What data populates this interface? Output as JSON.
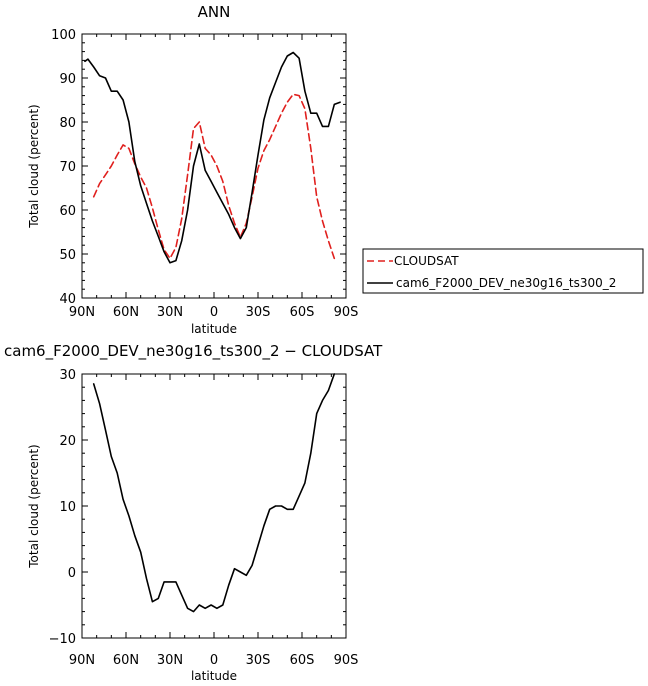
{
  "chart_data": [
    {
      "type": "line",
      "title": "ANN",
      "xlabel": "latitude",
      "ylabel": "Total cloud (percent)",
      "xlim": [
        90,
        -90
      ],
      "ylim": [
        40,
        100
      ],
      "xticks": [
        90,
        60,
        30,
        0,
        -30,
        -60,
        -90
      ],
      "xticklabels": [
        "90N",
        "60N",
        "30N",
        "0",
        "30S",
        "60S",
        "90S"
      ],
      "yticks": [
        40,
        50,
        60,
        70,
        80,
        90,
        100
      ],
      "yticklabels": [
        "40",
        "50",
        "60",
        "70",
        "80",
        "90",
        "100"
      ],
      "grid": false,
      "legend": "outside-right",
      "series": [
        {
          "name": "CLOUDSAT",
          "color": "#e0201e",
          "dash": "dashed",
          "x": [
            82,
            78,
            74,
            70,
            66,
            62,
            58,
            54,
            50,
            46,
            42,
            38,
            34,
            30,
            26,
            22,
            18,
            14,
            10,
            6,
            2,
            -2,
            -6,
            -10,
            -14,
            -18,
            -22,
            -26,
            -30,
            -34,
            -38,
            -42,
            -46,
            -50,
            -54,
            -58,
            -62,
            -66,
            -70,
            -74,
            -78,
            -82
          ],
          "y": [
            63.0,
            66.0,
            68.0,
            70.0,
            72.5,
            74.8,
            74.0,
            70.5,
            67.5,
            65.0,
            60.5,
            55.5,
            51.0,
            49.0,
            51.5,
            58.0,
            68.0,
            78.5,
            80.0,
            74.0,
            72.5,
            70.0,
            66.5,
            61.0,
            57.0,
            53.8,
            57.0,
            63.0,
            69.5,
            73.5,
            76.0,
            79.0,
            82.0,
            84.5,
            86.3,
            86.0,
            83.0,
            74.0,
            63.0,
            57.5,
            53.0,
            49.0
          ]
        },
        {
          "name": "cam6_F2000_DEV_ne30g16_ts300_2",
          "color": "#000000",
          "dash": "solid",
          "x": [
            88,
            86,
            82,
            78,
            74,
            70,
            66,
            62,
            58,
            54,
            50,
            46,
            42,
            38,
            34,
            30,
            26,
            22,
            18,
            14,
            10,
            6,
            2,
            -2,
            -6,
            -10,
            -14,
            -18,
            -22,
            -26,
            -30,
            -34,
            -38,
            -42,
            -46,
            -50,
            -54,
            -58,
            -62,
            -66,
            -70,
            -74,
            -78,
            -82,
            -86
          ],
          "y": [
            93.8,
            94.3,
            92.5,
            90.5,
            90.0,
            87.0,
            87.0,
            85.0,
            80.0,
            71.0,
            65.5,
            61.5,
            57.5,
            54.0,
            50.5,
            48.0,
            48.5,
            53.0,
            60.0,
            70.0,
            75.0,
            69.0,
            66.5,
            64.0,
            61.5,
            59.0,
            56.0,
            53.5,
            56.0,
            64.0,
            72.5,
            80.5,
            85.5,
            89.0,
            92.5,
            95.0,
            95.8,
            94.5,
            87.0,
            82.0,
            82.0,
            79.0,
            79.0,
            84.0,
            84.5
          ]
        }
      ]
    },
    {
      "type": "line",
      "title": "cam6_F2000_DEV_ne30g16_ts300_2 − CLOUDSAT",
      "xlabel": "latitude",
      "ylabel": "Total cloud (percent)",
      "xlim": [
        90,
        -90
      ],
      "ylim": [
        -10,
        30
      ],
      "xticks": [
        90,
        60,
        30,
        0,
        -30,
        -60,
        -90
      ],
      "xticklabels": [
        "90N",
        "60N",
        "30N",
        "0",
        "30S",
        "60S",
        "90S"
      ],
      "yticks": [
        -10,
        0,
        10,
        20,
        30
      ],
      "yticklabels": [
        "−10",
        "0",
        "10",
        "20",
        "30"
      ],
      "grid": false,
      "series": [
        {
          "color": "#000000",
          "dash": "solid",
          "x": [
            82,
            78,
            74,
            70,
            66,
            62,
            58,
            54,
            50,
            46,
            42,
            38,
            34,
            30,
            26,
            22,
            18,
            14,
            10,
            6,
            2,
            -2,
            -6,
            -10,
            -14,
            -18,
            -22,
            -26,
            -30,
            -34,
            -38,
            -42,
            -46,
            -50,
            -54,
            -58,
            -62,
            -66,
            -70,
            -74,
            -78,
            -82
          ],
          "y": [
            28.5,
            25.5,
            21.5,
            17.5,
            15.0,
            11.0,
            8.5,
            5.5,
            3.0,
            -1.0,
            -4.5,
            -4.0,
            -1.5,
            -1.5,
            -1.5,
            -3.5,
            -5.5,
            -6.0,
            -5.0,
            -5.5,
            -5.0,
            -5.5,
            -5.0,
            -2.0,
            0.5,
            0.0,
            -0.5,
            1.0,
            4.0,
            7.0,
            9.5,
            10.0,
            10.0,
            9.5,
            9.5,
            11.5,
            13.5,
            18.0,
            24.0,
            26.0,
            27.5,
            30.0
          ]
        }
      ]
    }
  ]
}
